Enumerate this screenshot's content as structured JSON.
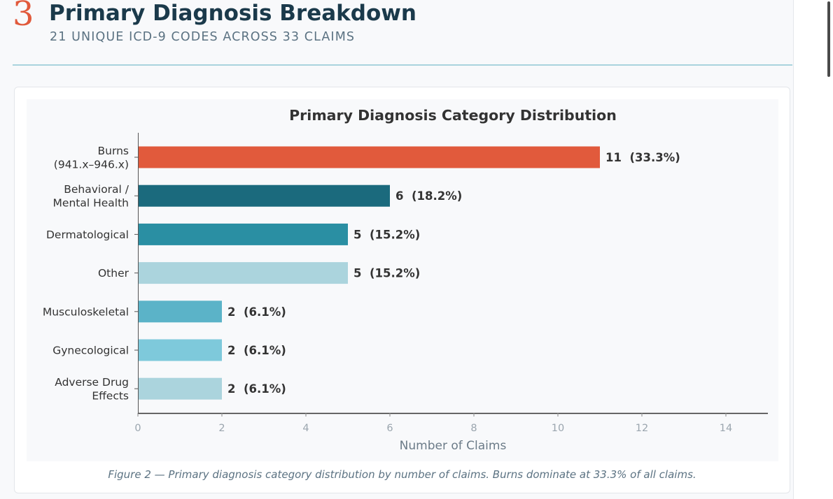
{
  "section": {
    "number": "3",
    "title": "Primary Diagnosis Breakdown",
    "subtitle": "21 UNIQUE ICD-9 CODES ACROSS 33 CLAIMS"
  },
  "caption": "Figure 2 — Primary diagnosis category distribution by number of claims. Burns dominate at 33.3% of all claims.",
  "chart_data": {
    "type": "bar",
    "orientation": "horizontal",
    "title": "Primary Diagnosis Category Distribution",
    "xlabel": "Number of Claims",
    "ylabel": "",
    "xlim": [
      0,
      15
    ],
    "xticks": [
      0,
      2,
      4,
      6,
      8,
      10,
      12,
      14
    ],
    "grid": false,
    "categories": [
      [
        "Burns",
        "(941.x–946.x)"
      ],
      [
        "Behavioral /",
        "Mental Health"
      ],
      [
        "Dermatological"
      ],
      [
        "Other"
      ],
      [
        "Musculoskeletal"
      ],
      [
        "Gynecological"
      ],
      [
        "Adverse Drug",
        "Effects"
      ]
    ],
    "values": [
      11,
      6,
      5,
      5,
      2,
      2,
      2
    ],
    "value_labels": [
      "11  (33.3%)",
      "6  (18.2%)",
      "5  (15.2%)",
      "5  (15.2%)",
      "2  (6.1%)",
      "2  (6.1%)",
      "2  (6.1%)"
    ],
    "colors": [
      "#e15a3c",
      "#1b6a7d",
      "#2a8fa3",
      "#abd4dd",
      "#5bb3c8",
      "#7ec9db",
      "#abd4dd"
    ]
  }
}
